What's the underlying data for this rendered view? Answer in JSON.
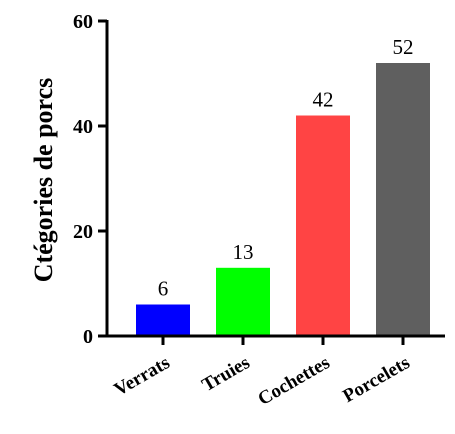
{
  "chart_data": {
    "type": "bar",
    "title": "",
    "xlabel": "",
    "ylabel": "Ctégories de porcs",
    "categories": [
      "Verrats",
      "Truies",
      "Cochettes",
      "Porcelets"
    ],
    "values": [
      6,
      13,
      42,
      52
    ],
    "value_labels": [
      "6",
      "13",
      "42",
      "52"
    ],
    "colors": [
      "#0000ff",
      "#00ff00",
      "#ff4444",
      "#5f5f5f"
    ],
    "ylim": [
      0,
      60
    ],
    "yticks": [
      0,
      20,
      40,
      60
    ],
    "ytick_labels": [
      "0",
      "20",
      "40",
      "60"
    ],
    "grid": false,
    "legend": "none"
  }
}
